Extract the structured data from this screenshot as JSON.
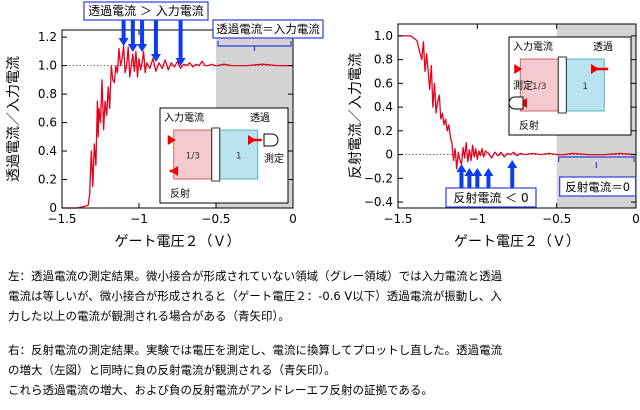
{
  "chart_data": [
    {
      "type": "line",
      "panel": "left",
      "xlabel": "ゲート電圧２（Ｖ）",
      "ylabel": "透過電流／入力電流",
      "xlim": [
        -1.5,
        0
      ],
      "ylim": [
        0,
        1.25
      ],
      "xticks": [
        "−1.5",
        "−1",
        "−0.5",
        "0"
      ],
      "xtick_values": [
        -1.5,
        -1.0,
        -0.5,
        0
      ],
      "yticks": [
        "0",
        "0.2",
        "0.4",
        "0.6",
        "0.8",
        "1.0",
        "1.2"
      ],
      "ytick_values": [
        0,
        0.2,
        0.4,
        0.6,
        0.8,
        1.0,
        1.2
      ],
      "reference_line": 1.0,
      "gray_region": [
        -0.5,
        0
      ],
      "series": [
        {
          "color": "#e8001c",
          "x": [
            -1.5,
            -1.45,
            -1.4,
            -1.36,
            -1.33,
            -1.32,
            -1.31,
            -1.3,
            -1.29,
            -1.28,
            -1.27,
            -1.265,
            -1.26,
            -1.25,
            -1.24,
            -1.23,
            -1.22,
            -1.21,
            -1.2,
            -1.19,
            -1.18,
            -1.17,
            -1.16,
            -1.15,
            -1.14,
            -1.13,
            -1.12,
            -1.11,
            -1.1,
            -1.09,
            -1.08,
            -1.07,
            -1.06,
            -1.05,
            -1.04,
            -1.03,
            -1.02,
            -1.01,
            -1.0,
            -0.99,
            -0.98,
            -0.97,
            -0.96,
            -0.95,
            -0.93,
            -0.91,
            -0.89,
            -0.87,
            -0.85,
            -0.83,
            -0.81,
            -0.79,
            -0.77,
            -0.75,
            -0.73,
            -0.71,
            -0.69,
            -0.67,
            -0.65,
            -0.63,
            -0.61,
            -0.59,
            -0.57,
            -0.55,
            -0.53,
            -0.51,
            -0.49,
            -0.45,
            -0.4,
            -0.3,
            -0.2,
            -0.1,
            0
          ],
          "y": [
            0,
            0,
            0,
            0.01,
            0.02,
            0.1,
            0.4,
            0.15,
            0.45,
            0.3,
            0.75,
            0.5,
            0.7,
            0.6,
            0.9,
            0.55,
            0.75,
            0.65,
            0.85,
            0.7,
            1.0,
            0.9,
            0.88,
            1.0,
            0.95,
            1.12,
            1.0,
            1.05,
            1.14,
            0.95,
            1.0,
            1.13,
            0.92,
            1.0,
            1.08,
            0.96,
            1.1,
            0.92,
            1.05,
            0.97,
            1.02,
            1.1,
            0.95,
            1.02,
            0.98,
            1.05,
            0.96,
            1.02,
            0.98,
            1.04,
            0.97,
            1.02,
            0.99,
            1.03,
            0.98,
            1.01,
            1.0,
            1.02,
            0.99,
            1.01,
            1.0,
            1.03,
            1.0,
            1.0,
            1.01,
            1.0,
            1.0,
            1.01,
            1.0,
            1.0,
            1.01,
            1.0,
            1.0
          ]
        }
      ],
      "arrows_x": [
        -1.1,
        -1.04,
        -0.98,
        -0.89,
        -0.73
      ],
      "arrow_label": "透過電流 ＞ 入力電流",
      "gray_label": "透過電流＝入力電流",
      "inset": {
        "input_label": "入力電流",
        "transmitted_label": "透過",
        "measure_label": "測定",
        "reflected_label": "反射",
        "left_value": "1/3",
        "right_value": "1"
      }
    },
    {
      "type": "line",
      "panel": "right",
      "xlabel": "ゲート電圧２（Ｖ）",
      "ylabel": "反射電流／入力電流",
      "xlim": [
        -1.5,
        0
      ],
      "ylim": [
        -0.45,
        1.1
      ],
      "xticks": [
        "−1.5",
        "−1",
        "−0.5",
        "0"
      ],
      "xtick_values": [
        -1.5,
        -1.0,
        -0.5,
        0
      ],
      "yticks": [
        "1.0",
        "0.8",
        "0.6",
        "0.4",
        "0.2",
        "0",
        "−0.2",
        "−0.4"
      ],
      "ytick_values": [
        1.0,
        0.8,
        0.6,
        0.4,
        0.2,
        0,
        -0.2,
        -0.4
      ],
      "reference_line": 0,
      "gray_region": [
        -0.5,
        0
      ],
      "series": [
        {
          "color": "#e8001c",
          "x": [
            -1.5,
            -1.45,
            -1.42,
            -1.4,
            -1.38,
            -1.37,
            -1.35,
            -1.34,
            -1.33,
            -1.32,
            -1.3,
            -1.29,
            -1.28,
            -1.27,
            -1.26,
            -1.25,
            -1.24,
            -1.23,
            -1.22,
            -1.21,
            -1.2,
            -1.19,
            -1.18,
            -1.17,
            -1.16,
            -1.15,
            -1.14,
            -1.13,
            -1.12,
            -1.11,
            -1.1,
            -1.09,
            -1.08,
            -1.07,
            -1.06,
            -1.05,
            -1.04,
            -1.03,
            -1.02,
            -1.01,
            -1.0,
            -0.99,
            -0.98,
            -0.97,
            -0.96,
            -0.95,
            -0.93,
            -0.91,
            -0.89,
            -0.87,
            -0.85,
            -0.83,
            -0.81,
            -0.79,
            -0.77,
            -0.75,
            -0.73,
            -0.7,
            -0.65,
            -0.6,
            -0.55,
            -0.5,
            -0.45,
            -0.4,
            -0.3,
            -0.2,
            -0.1,
            0
          ],
          "y": [
            1.0,
            1.0,
            1.0,
            0.98,
            0.96,
            0.9,
            0.8,
            0.95,
            0.7,
            0.85,
            0.55,
            0.75,
            0.4,
            0.6,
            0.35,
            0.45,
            0.5,
            0.3,
            0.35,
            0.25,
            0.3,
            0.2,
            0.25,
            0.15,
            0.1,
            -0.05,
            0.05,
            -0.12,
            0.02,
            -0.05,
            -0.08,
            0.06,
            -0.03,
            0.1,
            -0.06,
            0.04,
            -0.05,
            0.08,
            -0.02,
            0.05,
            -0.04,
            0.03,
            -0.01,
            0.05,
            -0.02,
            0.03,
            0.01,
            -0.03,
            0.02,
            -0.01,
            0.02,
            -0.02,
            0.01,
            0,
            0.02,
            -0.01,
            0.01,
            0,
            0.01,
            0,
            0.01,
            0,
            0,
            0.01,
            0,
            0,
            0.01,
            0
          ]
        }
      ],
      "arrows_x": [
        -1.1,
        -1.05,
        -1.0,
        -0.93,
        -0.78
      ],
      "arrow_label": "反射電流 ＜ 0",
      "gray_label": "反射電流＝0",
      "inset": {
        "input_label": "入力電流",
        "transmitted_label": "透過",
        "measure_label": "測定",
        "reflected_label": "反射",
        "left_value": "1/3",
        "right_value": "1"
      }
    }
  ],
  "colors": {
    "curve": "#e8001c",
    "arrow": "#0a3cf0",
    "gray_region": "#d4d4d4",
    "label_box": "#2a3fd8",
    "inset_pink": "#f4c9cf",
    "inset_blue": "#b9e3ef"
  },
  "captions": {
    "left": [
      "左：透過電流の測定結果。微小接合が形成されていない領域（グレー領域）では入力電流と透過",
      "電流は等しいが、微小接合が形成されると（ゲート電圧２：-0.6 V以下）透過電流が振動し、入",
      "力した以上の電流が観測される場合がある（青矢印）。"
    ],
    "right": [
      "右：反射電流の測定結果。実験では電圧を測定し、電流に換算してプロットし直した。透過電流",
      "の増大（左図）と同時に負の反射電流が観測される（青矢印）。",
      "これら透過電流の増大、および負の反射電流がアンドレーエフ反射の証拠である。"
    ]
  }
}
